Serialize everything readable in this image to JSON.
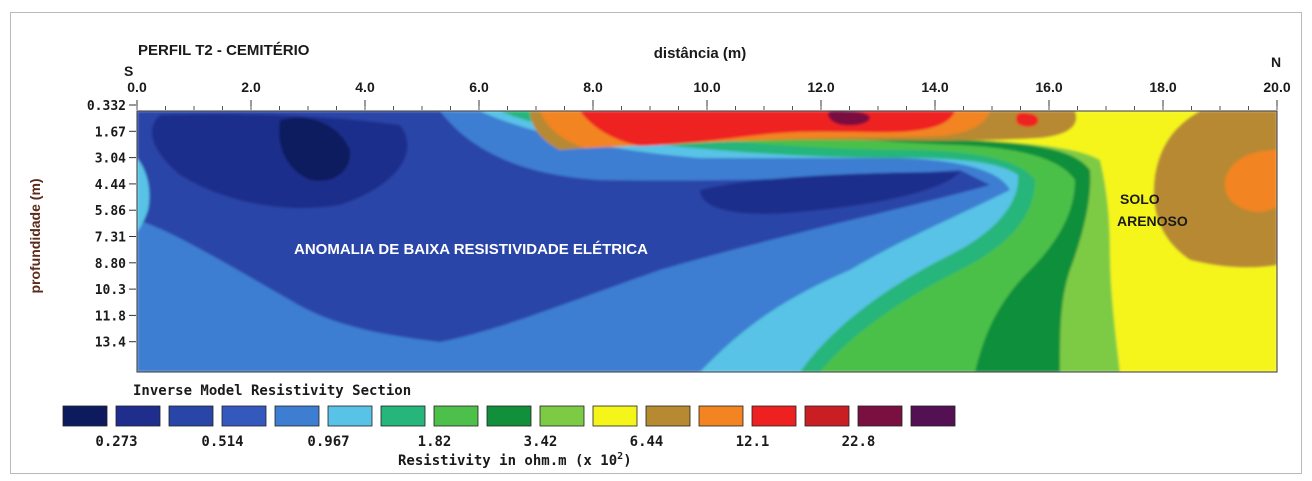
{
  "chart_data": {
    "type": "heatmap",
    "title": "PERFIL T2 - CEMITÉRIO",
    "xlabel": "distância (m)",
    "ylabel": "profundidade (m)",
    "direction_left": "S",
    "direction_right": "N",
    "x_ticks": [
      "0.0",
      "2.0",
      "4.0",
      "6.0",
      "8.0",
      "10.0",
      "12.0",
      "14.0",
      "16.0",
      "18.0",
      "20.0"
    ],
    "x_range": [
      0,
      20
    ],
    "y_ticks": [
      "0.332",
      "1.67",
      "3.04",
      "4.44",
      "5.86",
      "7.31",
      "8.80",
      "10.3",
      "11.8",
      "13.4"
    ],
    "annotations": [
      {
        "text": "ANOMALIA DE BAIXA RESISTIVIDADE ELÉTRICA",
        "color": "#ffffff"
      },
      {
        "lines": [
          "SOLO",
          "ARENOSO"
        ],
        "color": "#1a1a1a"
      }
    ],
    "legend": {
      "title": "Inverse Model Resistivity Section",
      "unit_label": "Resistivity in ohm.m (x 10",
      "unit_exponent": "2",
      "unit_close": ")",
      "colors": [
        "#0d1a5e",
        "#1f2e8c",
        "#2a45a8",
        "#3558bf",
        "#3d7ed2",
        "#58c3e6",
        "#26b57a",
        "#4cc04a",
        "#118f3a",
        "#7dcb45",
        "#f5f51a",
        "#b78930",
        "#f28421",
        "#ef2020",
        "#c81e24",
        "#7a1040",
        "#531052"
      ],
      "labels": [
        "0.273",
        "0.514",
        "0.967",
        "1.82",
        "3.42",
        "6.44",
        "12.1",
        "22.8"
      ]
    }
  }
}
